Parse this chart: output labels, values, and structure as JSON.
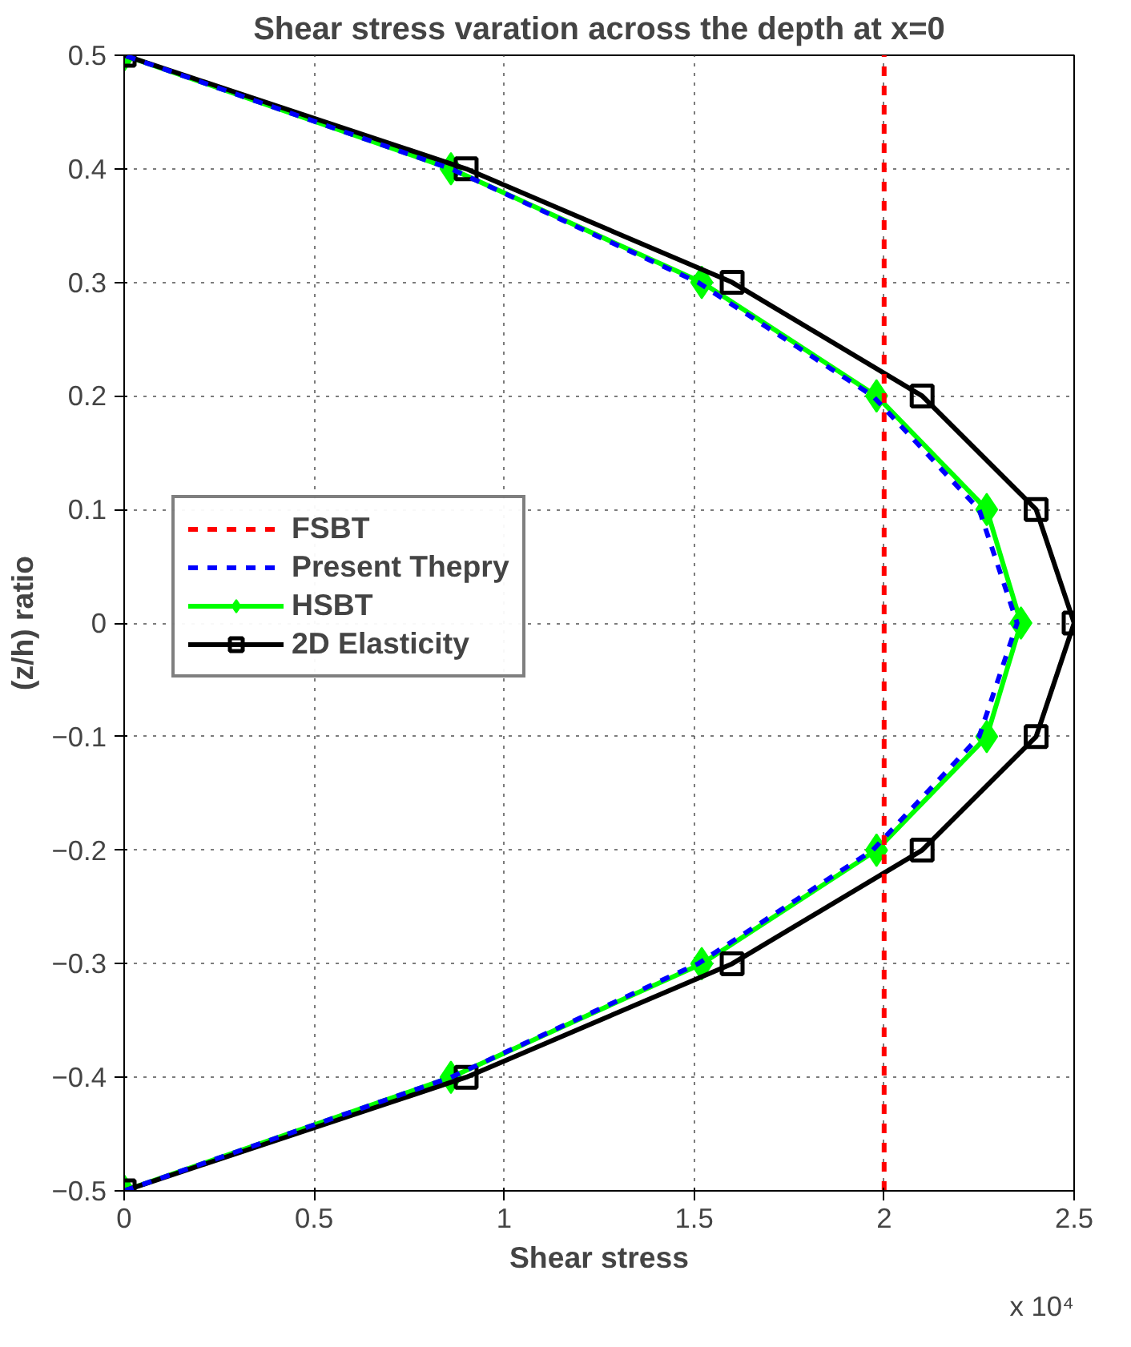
{
  "chart_data": {
    "type": "line",
    "title": "Shear stress varation across the depth at x=0",
    "xlabel": "Shear stress",
    "ylabel": "(z/h) ratio",
    "annotations": [
      "x 10⁴"
    ],
    "xlim": [
      0,
      2.5
    ],
    "xticks": [
      0,
      0.5,
      1,
      1.5,
      2,
      2.5
    ],
    "ylim": [
      -0.5,
      0.5
    ],
    "yticks": [
      -0.5,
      -0.4,
      -0.3,
      -0.2,
      -0.1,
      0,
      0.1,
      0.2,
      0.3,
      0.4,
      0.5
    ],
    "grid": true,
    "legend": "left",
    "series": [
      {
        "name": "FSBT",
        "color": "#ff0000",
        "line_style": "dashed",
        "marker": "none",
        "x": [
          2,
          2
        ],
        "values": [
          -0.5,
          0.5
        ]
      },
      {
        "name": "Present Thepry",
        "color": "#0000ff",
        "line_style": "dashed",
        "marker": "none",
        "x": [
          0,
          0.86,
          1.51,
          1.97,
          2.25,
          2.35,
          2.25,
          1.97,
          1.51,
          0.86,
          0
        ],
        "values": [
          -0.5,
          -0.4,
          -0.3,
          -0.2,
          -0.1,
          0,
          0.1,
          0.2,
          0.3,
          0.4,
          0.5
        ]
      },
      {
        "name": "HSBT",
        "color": "#00ff00",
        "line_style": "solid",
        "marker": "diamond",
        "x": [
          0,
          0.86,
          1.52,
          1.98,
          2.27,
          2.36,
          2.27,
          1.98,
          1.52,
          0.86,
          0
        ],
        "values": [
          -0.5,
          -0.4,
          -0.3,
          -0.2,
          -0.1,
          0,
          0.1,
          0.2,
          0.3,
          0.4,
          0.5
        ]
      },
      {
        "name": "2D Elasticity",
        "color": "#000000",
        "line_style": "solid",
        "marker": "square",
        "x": [
          0,
          0.9,
          1.6,
          2.1,
          2.4,
          2.5,
          2.4,
          2.1,
          1.6,
          0.9,
          0
        ],
        "values": [
          -0.5,
          -0.4,
          -0.3,
          -0.2,
          -0.1,
          0,
          0.1,
          0.2,
          0.3,
          0.4,
          0.5
        ]
      }
    ]
  }
}
